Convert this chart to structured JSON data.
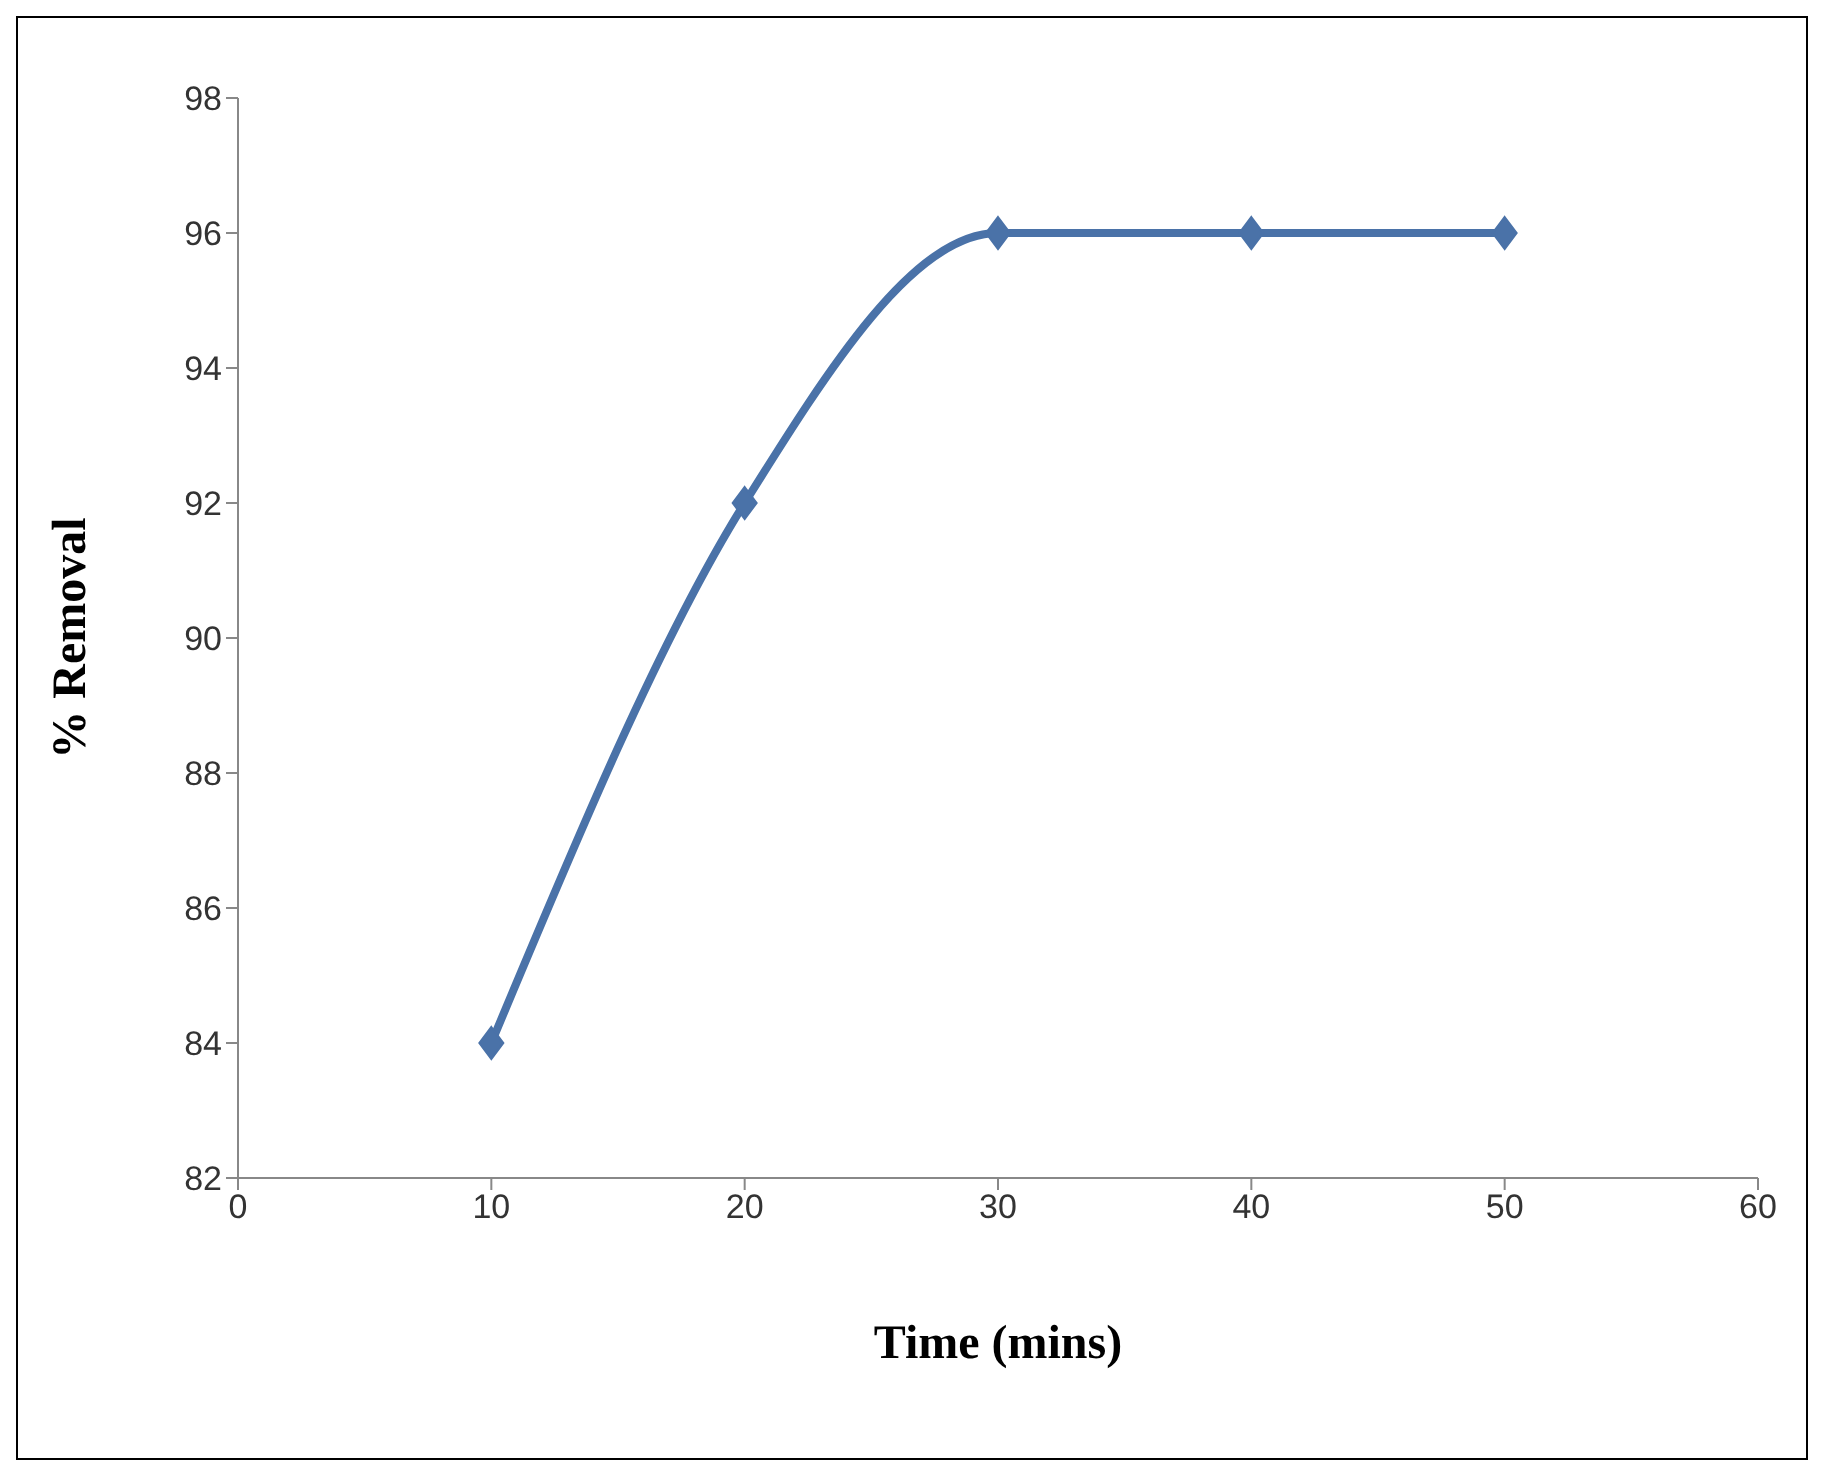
{
  "chart_data": {
    "type": "line",
    "xlabel": "Time (mins)",
    "ylabel": "% Removal",
    "x": [
      10,
      20,
      30,
      40,
      50
    ],
    "series": [
      {
        "color": "#4a72a8",
        "values": [
          84,
          92,
          96,
          96,
          96
        ]
      }
    ],
    "xlim": [
      0,
      60
    ],
    "xticks": [
      0,
      10,
      20,
      30,
      40,
      50,
      60
    ],
    "ylim": [
      82,
      98
    ],
    "yticks": [
      82,
      84,
      86,
      88,
      90,
      92,
      94,
      96,
      98
    ],
    "grid": false,
    "legend": false,
    "marker": "diamond",
    "line_style": "solid"
  }
}
